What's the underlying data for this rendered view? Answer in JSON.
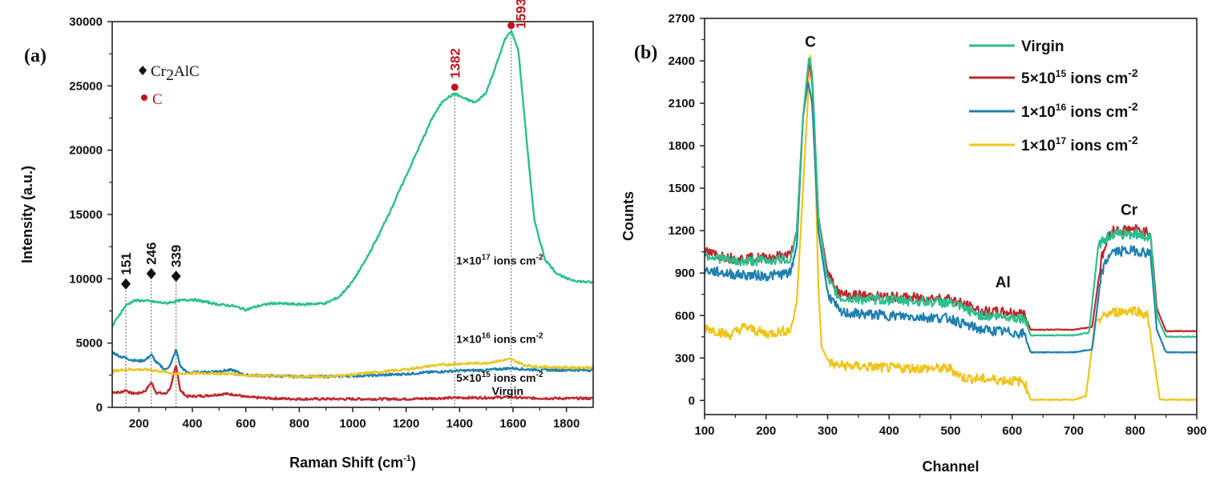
{
  "chart_data": [
    {
      "panel": "(a)",
      "type": "line",
      "title": "",
      "xlabel": "Raman Shift (cm",
      "xlabel_sup": "-1",
      "xlabel_end": ")",
      "ylabel": "Intensity (a.u.)",
      "xlim": [
        100,
        1900
      ],
      "ylim": [
        0,
        30000
      ],
      "xticks": [
        200,
        400,
        600,
        800,
        1000,
        1200,
        1400,
        1600,
        1800
      ],
      "yticks": [
        0,
        5000,
        10000,
        15000,
        20000,
        25000,
        30000
      ],
      "legend": [
        {
          "marker": "diamond",
          "label": "Cr",
          "sub": "2",
          "label_end": "AlC",
          "color": "#111111"
        },
        {
          "marker": "circle",
          "label": "C",
          "color": "#c0161c"
        }
      ],
      "peak_annotations": [
        {
          "x": 151,
          "label": "151",
          "marker": "diamond",
          "color": "#111111",
          "y_marker": 9600
        },
        {
          "x": 246,
          "label": "246",
          "marker": "diamond",
          "color": "#111111",
          "y_marker": 10400
        },
        {
          "x": 339,
          "label": "339",
          "marker": "diamond",
          "color": "#111111",
          "y_marker": 10200
        },
        {
          "x": 1382,
          "label": "1382",
          "marker": "circle",
          "color": "#c0161c",
          "y_marker": 24900
        },
        {
          "x": 1593,
          "label": "1593",
          "marker": "circle",
          "color": "#c0161c",
          "y_marker": 29700
        }
      ],
      "series": [
        {
          "name": "Virgin",
          "label_text": "Virgin",
          "color": "#c0272d",
          "x": [
            100,
            130,
            151,
            170,
            200,
            225,
            246,
            265,
            300,
            320,
            339,
            355,
            380,
            450,
            520,
            560,
            600,
            700,
            800,
            1000,
            1200,
            1300,
            1400,
            1500,
            1590,
            1650,
            1750,
            1900
          ],
          "y": [
            1200,
            1150,
            1350,
            1100,
            1100,
            1300,
            1950,
            1150,
            1050,
            1600,
            3300,
            1300,
            850,
            900,
            1050,
            1000,
            800,
            700,
            650,
            650,
            650,
            700,
            750,
            750,
            800,
            720,
            700,
            700
          ]
        },
        {
          "name": "5×10¹⁵ ions cm⁻²",
          "label_text": "5×10",
          "label_sup": "15",
          "label_end": " ions cm",
          "label_sup2": "-2",
          "color": "#1f7fb0",
          "x": [
            100,
            130,
            151,
            170,
            200,
            225,
            246,
            265,
            300,
            320,
            339,
            355,
            380,
            450,
            550,
            600,
            700,
            800,
            900,
            1000,
            1100,
            1200,
            1300,
            1400,
            1500,
            1593,
            1650,
            1750,
            1900
          ],
          "y": [
            4300,
            3950,
            3850,
            3700,
            3600,
            3700,
            4100,
            3500,
            2900,
            3400,
            4500,
            3200,
            2700,
            2750,
            2900,
            2500,
            2450,
            2400,
            2400,
            2450,
            2500,
            2600,
            2750,
            2850,
            2900,
            3050,
            2950,
            2900,
            2900
          ]
        },
        {
          "name": "1×10¹⁶ ions cm⁻²",
          "label_text": "1×10",
          "label_sup": "16",
          "label_end": " ions cm",
          "label_sup2": "-2",
          "color": "#e8c72a",
          "x": [
            100,
            150,
            200,
            246,
            300,
            339,
            380,
            450,
            550,
            600,
            700,
            800,
            900,
            1000,
            1100,
            1200,
            1300,
            1400,
            1500,
            1560,
            1593,
            1640,
            1700,
            1800,
            1900
          ],
          "y": [
            2800,
            2950,
            2950,
            2900,
            2750,
            2600,
            2650,
            2650,
            2600,
            2500,
            2450,
            2400,
            2400,
            2550,
            2750,
            2950,
            3250,
            3400,
            3450,
            3650,
            3750,
            3300,
            3150,
            3100,
            3100
          ]
        },
        {
          "name": "1×10¹⁷ ions cm⁻²",
          "label_text": "1×10",
          "label_sup": "17",
          "label_end": " ions cm",
          "label_sup2": "-2",
          "color": "#2bbf8c",
          "x": [
            100,
            120,
            150,
            180,
            220,
            260,
            300,
            350,
            400,
            450,
            500,
            550,
            600,
            650,
            700,
            800,
            900,
            950,
            1000,
            1050,
            1100,
            1150,
            1200,
            1250,
            1300,
            1340,
            1382,
            1420,
            1460,
            1500,
            1540,
            1570,
            1593,
            1620,
            1650,
            1680,
            1720,
            1760,
            1800,
            1850,
            1900
          ],
          "y": [
            6300,
            7000,
            7900,
            8300,
            8300,
            8200,
            8100,
            8300,
            8400,
            8200,
            8000,
            7900,
            7600,
            7900,
            8100,
            8000,
            8100,
            8600,
            9800,
            11500,
            13500,
            15700,
            18000,
            20300,
            22600,
            23900,
            24400,
            24000,
            23700,
            24500,
            26800,
            28600,
            29300,
            27800,
            21000,
            14500,
            11500,
            10500,
            10000,
            9800,
            9700
          ]
        }
      ],
      "curve_labels": [
        {
          "series": 3,
          "x": 1550,
          "y": 11100
        },
        {
          "series": 2,
          "x": 1550,
          "y": 5000
        },
        {
          "series": 1,
          "x": 1550,
          "y": 2000
        },
        {
          "series": 0,
          "x": 1580,
          "y": 950
        }
      ]
    },
    {
      "panel": "(b)",
      "type": "line",
      "title": "",
      "xlabel": "Channel",
      "ylabel": "Counts",
      "xlim": [
        100,
        900
      ],
      "ylim": [
        -100,
        2700
      ],
      "xticks": [
        100,
        200,
        300,
        400,
        500,
        600,
        700,
        800,
        900
      ],
      "yticks": [
        0,
        300,
        600,
        900,
        1200,
        1500,
        1800,
        2100,
        2400,
        2700
      ],
      "legend_position": "top-right",
      "element_labels": [
        {
          "label": "C",
          "x": 272,
          "y": 2500
        },
        {
          "label": "Al",
          "x": 585,
          "y": 800
        },
        {
          "label": "Cr",
          "x": 790,
          "y": 1310
        }
      ],
      "series": [
        {
          "name": "Virgin",
          "color": "#2bbf8c",
          "label_text": "Virgin",
          "x": [
            100,
            150,
            200,
            240,
            250,
            260,
            270,
            275,
            285,
            300,
            320,
            400,
            500,
            520,
            550,
            600,
            620,
            630,
            700,
            725,
            740,
            760,
            800,
            825,
            835,
            850,
            900
          ],
          "y": [
            1030,
            980,
            990,
            1000,
            1200,
            2000,
            2440,
            2300,
            1300,
            850,
            720,
            710,
            690,
            650,
            600,
            590,
            580,
            460,
            460,
            480,
            1100,
            1170,
            1180,
            1150,
            600,
            450,
            450
          ]
        },
        {
          "name": "5×10¹⁵ ions cm⁻²",
          "color": "#c0272d",
          "label_text": "5×10",
          "label_sup": "15",
          "label_end": " ions cm",
          "label_sup2": "-2",
          "x": [
            100,
            150,
            200,
            240,
            250,
            260,
            270,
            275,
            285,
            300,
            320,
            400,
            500,
            520,
            550,
            600,
            620,
            630,
            700,
            730,
            745,
            760,
            800,
            825,
            835,
            850,
            900
          ],
          "y": [
            1050,
            1000,
            1010,
            1030,
            1200,
            2000,
            2400,
            2250,
            1300,
            900,
            750,
            730,
            720,
            680,
            630,
            620,
            610,
            500,
            500,
            520,
            1000,
            1200,
            1210,
            1180,
            650,
            490,
            490
          ]
        },
        {
          "name": "1×10¹⁶ ions cm⁻²",
          "color": "#1f7fb0",
          "label_text": "1×10",
          "label_sup": "16",
          "label_end": " ions cm",
          "label_sup2": "-2",
          "x": [
            100,
            150,
            200,
            240,
            250,
            260,
            268,
            275,
            285,
            300,
            320,
            400,
            500,
            520,
            550,
            600,
            620,
            630,
            700,
            730,
            745,
            760,
            800,
            825,
            835,
            850,
            900
          ],
          "y": [
            920,
            890,
            880,
            900,
            1100,
            2000,
            2250,
            2100,
            1200,
            760,
            620,
            600,
            580,
            540,
            500,
            480,
            470,
            340,
            340,
            360,
            900,
            1050,
            1060,
            1040,
            500,
            340,
            340
          ]
        },
        {
          "name": "1×10¹⁷ ions cm⁻²",
          "color": "#f0c419",
          "label_text": "1×10",
          "label_sup": "17",
          "label_end": " ions cm",
          "label_sup2": "-2",
          "x": [
            100,
            140,
            165,
            200,
            240,
            250,
            260,
            272,
            278,
            285,
            290,
            300,
            310,
            400,
            500,
            520,
            600,
            620,
            630,
            700,
            720,
            735,
            760,
            800,
            820,
            830,
            840,
            900
          ],
          "y": [
            520,
            460,
            520,
            470,
            500,
            700,
            1500,
            2440,
            2000,
            800,
            380,
            290,
            250,
            230,
            225,
            160,
            140,
            130,
            5,
            5,
            30,
            560,
            620,
            640,
            600,
            300,
            5,
            5
          ]
        }
      ]
    }
  ]
}
